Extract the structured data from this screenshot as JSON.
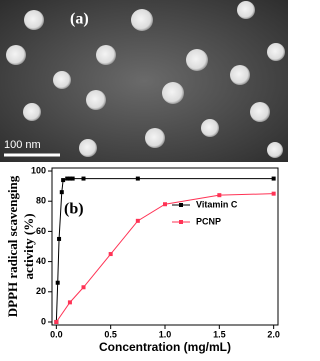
{
  "image_panel": {
    "label": "(a)",
    "scale_bar": "100 nm"
  },
  "chart_data": {
    "type": "line",
    "panel_label": "(b)",
    "x_label": "Concentration (mg/mL)",
    "y_label": [
      "DPPH radical scavenging",
      "activity (%)"
    ],
    "xlim": [
      -0.04,
      2.04
    ],
    "ylim": [
      -2,
      102
    ],
    "xticks": [
      {
        "value": 0,
        "label": "0.0"
      },
      {
        "value": 0.5,
        "label": "0.5"
      },
      {
        "value": 1,
        "label": "1.0"
      },
      {
        "value": 1.5,
        "label": "1.5"
      },
      {
        "value": 2,
        "label": "2.0"
      }
    ],
    "yticks": [
      0,
      20,
      40,
      60,
      80,
      100
    ],
    "series": [
      {
        "name": "Vitamin C",
        "color": "#000000",
        "marker": "square",
        "x": [
          0,
          0.0125,
          0.025,
          0.05,
          0.0625,
          0.1,
          0.125,
          0.15,
          0.25,
          0.75,
          2.0
        ],
        "values": [
          0,
          26,
          55,
          86,
          94,
          95,
          95,
          95,
          95,
          95,
          95
        ]
      },
      {
        "name": "PCNP",
        "color": "#ff3355",
        "marker": "square",
        "x": [
          0,
          0.125,
          0.25,
          0.5,
          0.75,
          1.0,
          1.5,
          2.0
        ],
        "values": [
          0,
          13,
          23,
          45,
          67,
          78,
          84,
          85
        ]
      }
    ]
  }
}
